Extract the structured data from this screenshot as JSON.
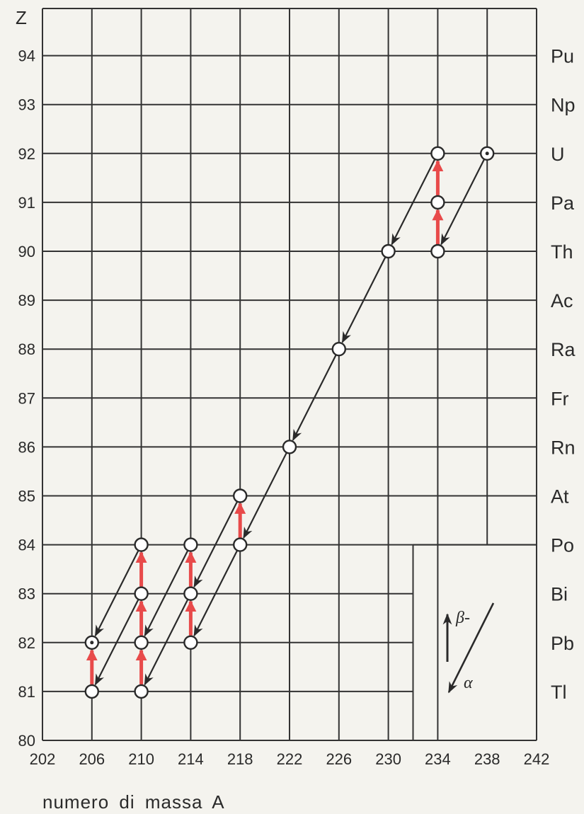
{
  "chart_data": {
    "type": "scatter",
    "ylabel": "Z",
    "xlabel": "numero di massa A",
    "xlim": [
      202,
      242
    ],
    "ylim": [
      80,
      95
    ],
    "x_ticks": [
      "202",
      "206",
      "210",
      "214",
      "218",
      "222",
      "226",
      "230",
      "234",
      "238",
      "242"
    ],
    "y_ticks": [
      "80",
      "81",
      "82",
      "83",
      "84",
      "85",
      "86",
      "87",
      "88",
      "89",
      "90",
      "91",
      "92",
      "93",
      "94"
    ],
    "elements": [
      {
        "z": 94,
        "symbol": "Pu"
      },
      {
        "z": 93,
        "symbol": "Np"
      },
      {
        "z": 92,
        "symbol": "U"
      },
      {
        "z": 91,
        "symbol": "Pa"
      },
      {
        "z": 90,
        "symbol": "Th"
      },
      {
        "z": 89,
        "symbol": "Ac"
      },
      {
        "z": 88,
        "symbol": "Ra"
      },
      {
        "z": 87,
        "symbol": "Fr"
      },
      {
        "z": 86,
        "symbol": "Rn"
      },
      {
        "z": 85,
        "symbol": "At"
      },
      {
        "z": 84,
        "symbol": "Po"
      },
      {
        "z": 83,
        "symbol": "Bi"
      },
      {
        "z": 82,
        "symbol": "Pb"
      },
      {
        "z": 81,
        "symbol": "Tl"
      }
    ],
    "nuclides": [
      {
        "a": 238,
        "z": 92,
        "dotted": true
      },
      {
        "a": 234,
        "z": 92
      },
      {
        "a": 234,
        "z": 91
      },
      {
        "a": 234,
        "z": 90
      },
      {
        "a": 230,
        "z": 90
      },
      {
        "a": 226,
        "z": 88
      },
      {
        "a": 222,
        "z": 86
      },
      {
        "a": 218,
        "z": 85
      },
      {
        "a": 218,
        "z": 84
      },
      {
        "a": 214,
        "z": 84
      },
      {
        "a": 214,
        "z": 83
      },
      {
        "a": 214,
        "z": 82
      },
      {
        "a": 210,
        "z": 84
      },
      {
        "a": 210,
        "z": 83
      },
      {
        "a": 210,
        "z": 82
      },
      {
        "a": 210,
        "z": 81
      },
      {
        "a": 206,
        "z": 82,
        "dotted": true
      },
      {
        "a": 206,
        "z": 81
      }
    ],
    "alpha_decays": [
      {
        "from": [
          238,
          92
        ],
        "to": [
          234,
          90
        ]
      },
      {
        "from": [
          234,
          92
        ],
        "to": [
          230,
          90
        ]
      },
      {
        "from": [
          230,
          90
        ],
        "to": [
          226,
          88
        ]
      },
      {
        "from": [
          226,
          88
        ],
        "to": [
          222,
          86
        ]
      },
      {
        "from": [
          222,
          86
        ],
        "to": [
          218,
          84
        ]
      },
      {
        "from": [
          218,
          85
        ],
        "to": [
          214,
          83
        ]
      },
      {
        "from": [
          218,
          84
        ],
        "to": [
          214,
          82
        ]
      },
      {
        "from": [
          214,
          84
        ],
        "to": [
          210,
          82
        ]
      },
      {
        "from": [
          214,
          83
        ],
        "to": [
          210,
          81
        ]
      },
      {
        "from": [
          210,
          84
        ],
        "to": [
          206,
          82
        ]
      },
      {
        "from": [
          210,
          83
        ],
        "to": [
          206,
          81
        ]
      }
    ],
    "beta_decays": [
      {
        "from": [
          234,
          90
        ],
        "to": [
          234,
          91
        ]
      },
      {
        "from": [
          234,
          91
        ],
        "to": [
          234,
          92
        ]
      },
      {
        "from": [
          218,
          84
        ],
        "to": [
          218,
          85
        ]
      },
      {
        "from": [
          214,
          83
        ],
        "to": [
          214,
          84
        ]
      },
      {
        "from": [
          214,
          82
        ],
        "to": [
          214,
          83
        ]
      },
      {
        "from": [
          210,
          83
        ],
        "to": [
          210,
          84
        ]
      },
      {
        "from": [
          210,
          82
        ],
        "to": [
          210,
          83
        ]
      },
      {
        "from": [
          210,
          81
        ],
        "to": [
          210,
          82
        ]
      },
      {
        "from": [
          206,
          81
        ],
        "to": [
          206,
          82
        ]
      }
    ],
    "legend": {
      "position": "bottom-right",
      "beta_label": "β-",
      "alpha_label": "α"
    },
    "grid": true
  },
  "colors": {
    "background": "#f4f3ee",
    "grid": "#333333",
    "ink": "#2a2a2a",
    "beta_arrow": "#e84a4a",
    "node_fill": "#ffffff"
  }
}
